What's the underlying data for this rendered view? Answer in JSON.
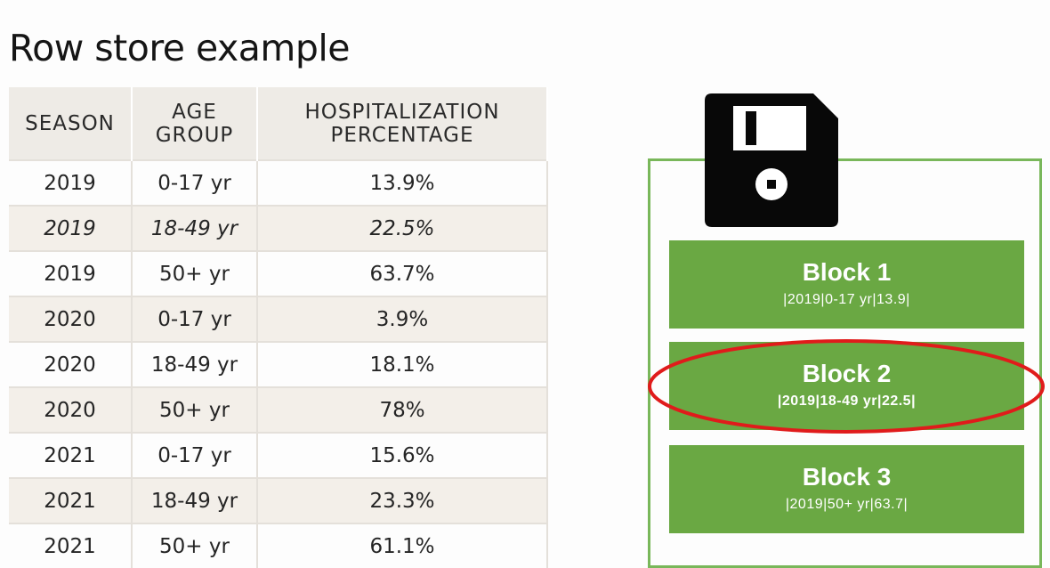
{
  "title": "Row store example",
  "table": {
    "headers": [
      [
        "SEASON"
      ],
      [
        "AGE",
        "GROUP"
      ],
      [
        "HOSPITALIZATION",
        "PERCENTAGE"
      ]
    ],
    "rows": [
      {
        "season": "2019",
        "age": "0-17 yr",
        "pct": "13.9%"
      },
      {
        "season": "2019",
        "age": "18-49 yr",
        "pct": "22.5%"
      },
      {
        "season": "2019",
        "age": "50+ yr",
        "pct": "63.7%"
      },
      {
        "season": "2020",
        "age": "0-17 yr",
        "pct": "3.9%"
      },
      {
        "season": "2020",
        "age": "18-49 yr",
        "pct": "18.1%"
      },
      {
        "season": "2020",
        "age": "50+ yr",
        "pct": "78%"
      },
      {
        "season": "2021",
        "age": "0-17 yr",
        "pct": "15.6%"
      },
      {
        "season": "2021",
        "age": "18-49 yr",
        "pct": "23.3%"
      },
      {
        "season": "2021",
        "age": "50+ yr",
        "pct": "61.1%"
      }
    ]
  },
  "storage": {
    "icon": "floppy-disk-icon",
    "accent_color": "#6aa843",
    "highlight_color": "#e01b1b",
    "blocks": [
      {
        "name": "Block 1",
        "data": "|2019|0-17 yr|13.9|"
      },
      {
        "name": "Block 2",
        "data": "|2019|18-49 yr|22.5|"
      },
      {
        "name": "Block 3",
        "data": "|2019|50+ yr|63.7|"
      }
    ]
  }
}
